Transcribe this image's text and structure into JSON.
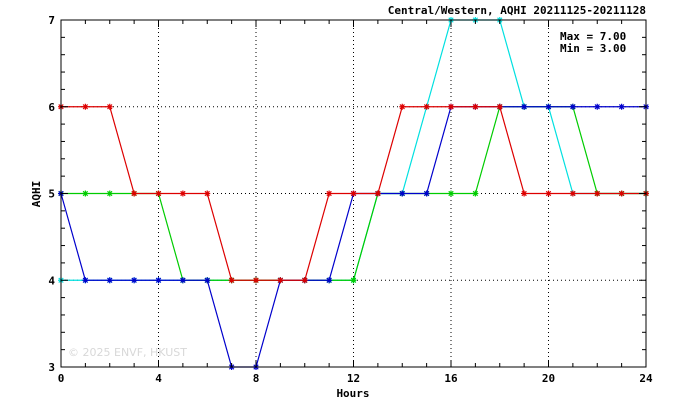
{
  "chart_data": {
    "type": "line",
    "title": "Central/Western, AQHI 20211125-20211128",
    "xlabel": "Hours",
    "ylabel": "AQHI",
    "xlim": [
      0,
      24
    ],
    "ylim": [
      3,
      7
    ],
    "xticks": [
      0,
      4,
      8,
      12,
      16,
      20,
      24
    ],
    "yticks": [
      3,
      4,
      5,
      6,
      7
    ],
    "grid": true,
    "stats": [
      "Max = 7.00",
      "Min = 3.00"
    ],
    "watermark": "© 2025  ENVF, HKUST",
    "x": [
      0,
      1,
      2,
      3,
      4,
      5,
      6,
      7,
      8,
      9,
      10,
      11,
      12,
      13,
      14,
      15,
      16,
      17,
      18,
      19,
      20,
      21,
      22,
      23,
      24
    ],
    "series": [
      {
        "color": "#00e0e0",
        "values": [
          4,
          4,
          4,
          4,
          4,
          4,
          4,
          4,
          4,
          4,
          4,
          4,
          4,
          5,
          5,
          6,
          7,
          7,
          7,
          6,
          6,
          5,
          5,
          5,
          5
        ]
      },
      {
        "color": "#00cc00",
        "values": [
          5,
          5,
          5,
          5,
          5,
          4,
          4,
          4,
          4,
          4,
          4,
          4,
          4,
          5,
          5,
          5,
          5,
          5,
          6,
          6,
          6,
          6,
          5,
          5,
          5
        ]
      },
      {
        "color": "#0000cc",
        "values": [
          5,
          4,
          4,
          4,
          4,
          4,
          4,
          3,
          3,
          4,
          4,
          4,
          5,
          5,
          5,
          5,
          6,
          6,
          6,
          6,
          6,
          6,
          6,
          6,
          6
        ]
      },
      {
        "color": "#dd0000",
        "values": [
          6,
          6,
          6,
          5,
          5,
          5,
          5,
          4,
          4,
          4,
          4,
          5,
          5,
          5,
          6,
          6,
          6,
          6,
          6,
          5,
          5,
          5,
          5,
          5,
          5
        ]
      }
    ]
  }
}
